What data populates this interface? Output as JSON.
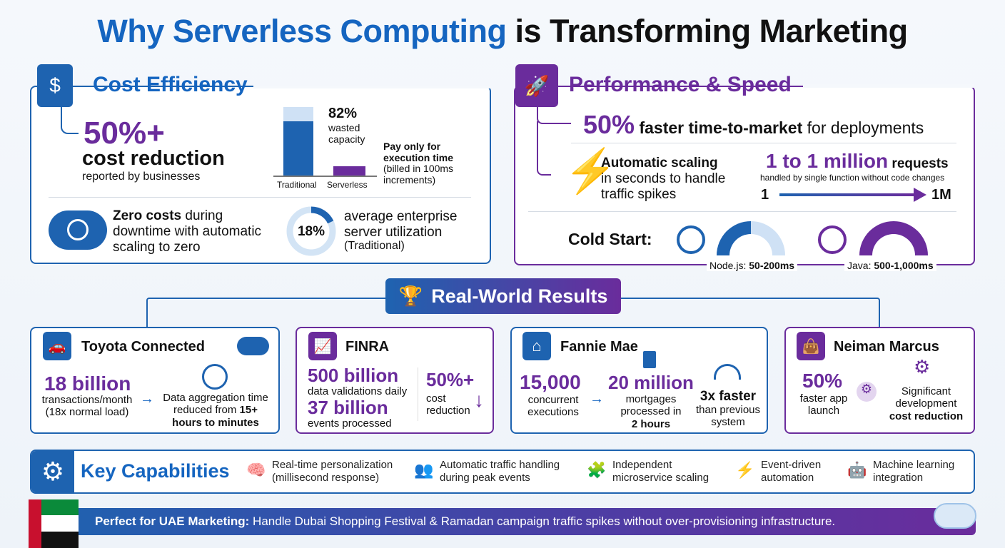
{
  "title": {
    "part1": "Why Serverless Computing",
    "part2": "is Transforming Marketing"
  },
  "cost": {
    "heading": "Cost Efficiency",
    "stat": "50%+",
    "stat_label": "cost reduction",
    "stat_sub": "reported by businesses",
    "chart": {
      "categories": [
        "Traditional",
        "Serverless"
      ],
      "bar_label_pct": "82%",
      "bar_label_text": "wasted capacity",
      "serverless_bold": "Pay only for execution time",
      "serverless_note": "(billed in 100ms increments)"
    },
    "zero_bold": "Zero costs",
    "zero_rest": " during downtime with automatic scaling to zero",
    "util_value": "18%",
    "util_fraction": 0.18,
    "util_text": "average enterprise server utilization",
    "util_sub": "(Traditional)"
  },
  "perf": {
    "heading": "Performance & Speed",
    "stat": "50%",
    "stat_bold": "faster time-to-market",
    "stat_rest": "for deployments",
    "scaling_bold": "Automatic scaling",
    "scaling_rest": "in seconds to handle traffic spikes",
    "range_big": "1 to 1 million",
    "range_word": "requests",
    "range_sub": "handled by single function without code changes",
    "range_from": "1",
    "range_to": "1M",
    "cold_label": "Cold Start:",
    "node_label": "Node.js:",
    "node_value": "50-200ms",
    "java_label": "Java:",
    "java_value": "500-1,000ms"
  },
  "results": {
    "heading": "Real-World Results",
    "toyota": {
      "name": "Toyota Connected",
      "stat": "18 billion",
      "sub1": "transactions/month",
      "sub2": "(18x normal load)",
      "desc": "Data aggregation time reduced from ",
      "desc_bold": "15+ hours to minutes"
    },
    "finra": {
      "name": "FINRA",
      "stat1": "500 billion",
      "sub1": "data validations daily",
      "stat2": "37 billion",
      "sub2": "events processed",
      "stat3": "50%+",
      "sub3": "cost reduction"
    },
    "fannie": {
      "name": "Fannie Mae",
      "stat1": "15,000",
      "sub1": "concurrent executions",
      "stat2": "20 million",
      "sub2": "mortgages processed in",
      "sub2_bold": "2 hours",
      "stat3": "3x faster",
      "sub3": "than previous system"
    },
    "neiman": {
      "name": "Neiman Marcus",
      "stat": "50%",
      "sub": "faster app launch",
      "desc": "Significant development",
      "desc_bold": "cost reduction"
    }
  },
  "capabilities": {
    "heading": "Key Capabilities",
    "items": [
      {
        "l1": "Real-time personalization",
        "l2": "(millisecond response)",
        "icon": "brain-icon"
      },
      {
        "l1": "Automatic traffic handling",
        "l2": "during peak events",
        "icon": "people-icon"
      },
      {
        "l1": "Independent",
        "l2": "microservice scaling",
        "icon": "puzzle-icon"
      },
      {
        "l1": "Event-driven",
        "l2": "automation",
        "icon": "bolt-icon"
      },
      {
        "l1": "Machine learning",
        "l2": "integration",
        "icon": "robot-icon"
      }
    ]
  },
  "banner": {
    "bold": "Perfect for UAE Marketing:",
    "text": " Handle Dubai Shopping Festival & Ramadan campaign traffic spikes without over-provisioning infrastructure."
  },
  "colors": {
    "blue": "#1565c0",
    "purple": "#6a2c9c"
  }
}
